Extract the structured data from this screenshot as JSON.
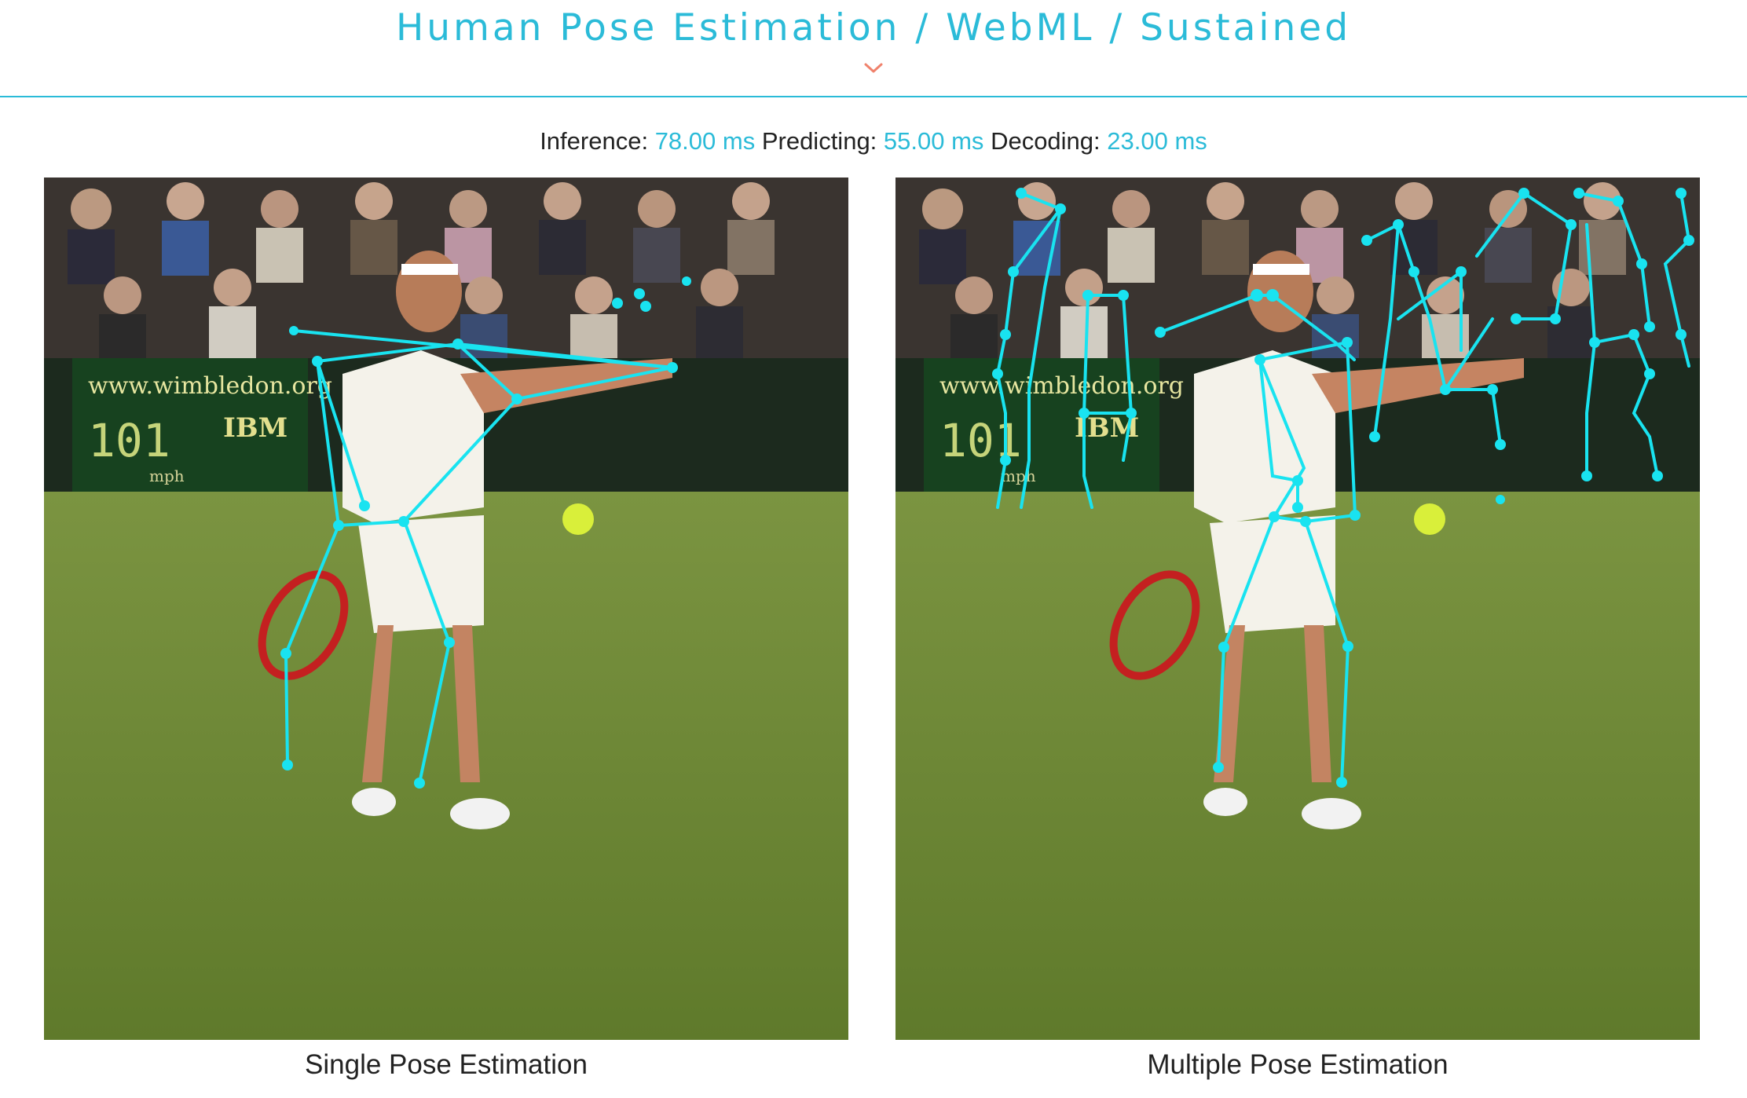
{
  "header": {
    "title": "Human Pose Estimation / WebML / Sustained",
    "toggle_icon": "chevron-down-icon",
    "accent_color": "#2bbbd8",
    "toggle_color": "#f0826c"
  },
  "stats": {
    "inference_label": "Inference:",
    "inference_value": "78.00 ms",
    "predicting_label": "Predicting:",
    "predicting_value": "55.00 ms",
    "decoding_label": "Decoding:",
    "decoding_value": "23.00 ms"
  },
  "panels": [
    {
      "caption": "Single Pose Estimation",
      "skeleton_color": "#19e3f0"
    },
    {
      "caption": "Multiple Pose Estimation",
      "skeleton_color": "#19e3f0"
    }
  ],
  "scene": {
    "banner_text": "www.wimbledon.org",
    "speed_value": "101",
    "speed_unit": "mph",
    "sponsor": "IBM"
  }
}
